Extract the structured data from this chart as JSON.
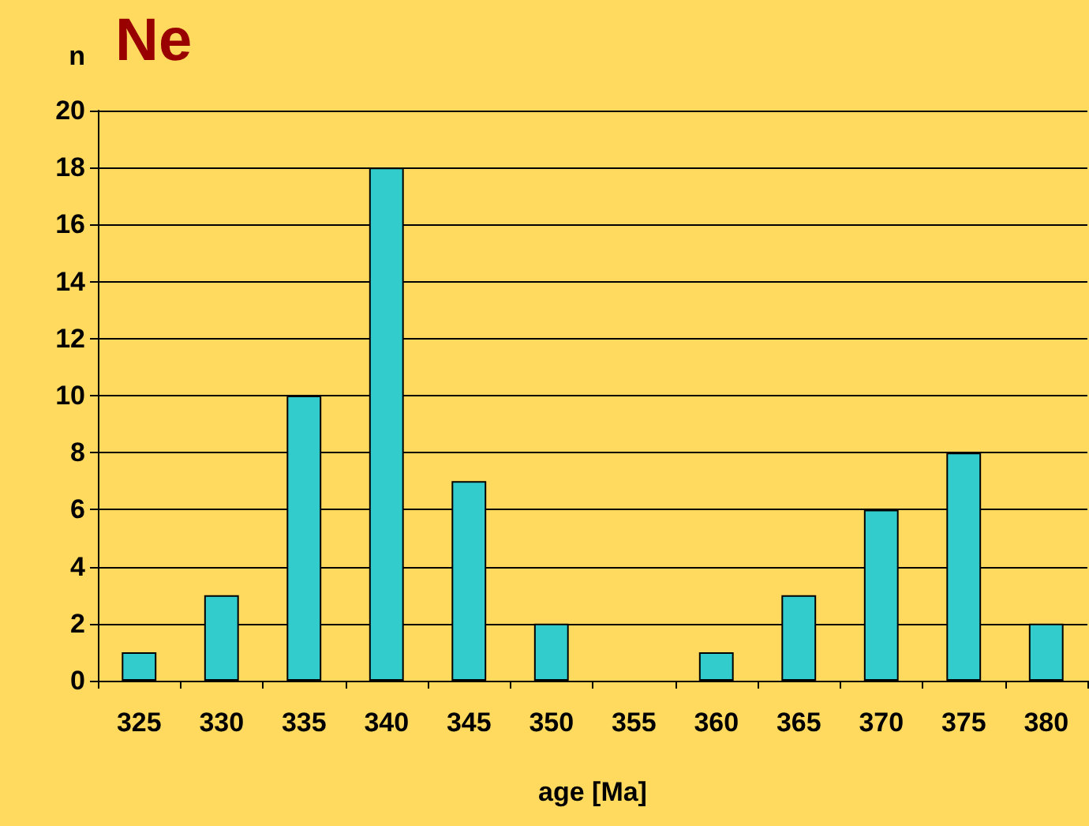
{
  "chart_data": {
    "type": "bar",
    "title": "Ne",
    "xlabel": "age [Ma]",
    "ylabel": "n",
    "categories": [
      "325",
      "330",
      "335",
      "340",
      "345",
      "350",
      "355",
      "360",
      "365",
      "370",
      "375",
      "380"
    ],
    "values": [
      1,
      3,
      10,
      18,
      7,
      2,
      0,
      1,
      3,
      6,
      8,
      2
    ],
    "color": "#33cccc",
    "ylim": [
      0,
      20
    ],
    "yticks": [
      0,
      2,
      4,
      6,
      8,
      10,
      12,
      14,
      16,
      18,
      20
    ],
    "grid": "y"
  }
}
